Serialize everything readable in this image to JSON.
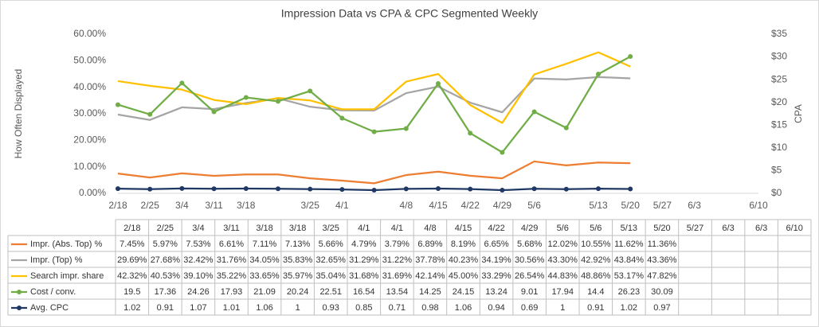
{
  "chart_data": {
    "type": "line",
    "title": "Impression Data vs CPA & CPC Segmented Weekly",
    "ylabel": "How Often Displayed",
    "y2label": "CPA",
    "categories": [
      "2/18",
      "2/25",
      "3/4",
      "3/11",
      "3/18",
      "3/18",
      "3/25",
      "4/1",
      "4/1",
      "4/8",
      "4/15",
      "4/22",
      "4/29",
      "5/6",
      "5/6",
      "5/13",
      "5/20",
      "5/27",
      "6/3",
      "6/3",
      "6/10"
    ],
    "ylim": [
      0,
      60
    ],
    "yticks": [
      {
        "value": 0,
        "label": "0.00%"
      },
      {
        "value": 10,
        "label": "10.00%"
      },
      {
        "value": 20,
        "label": "20.00%"
      },
      {
        "value": 30,
        "label": "30.00%"
      },
      {
        "value": 40,
        "label": "40.00%"
      },
      {
        "value": 50,
        "label": "50.00%"
      },
      {
        "value": 60,
        "label": "60.00%"
      }
    ],
    "y2lim": [
      0,
      35
    ],
    "y2ticks": [
      {
        "value": 0,
        "label": "$0"
      },
      {
        "value": 5,
        "label": "$5"
      },
      {
        "value": 10,
        "label": "$10"
      },
      {
        "value": 15,
        "label": "$15"
      },
      {
        "value": 20,
        "label": "$20"
      },
      {
        "value": 25,
        "label": "$25"
      },
      {
        "value": 30,
        "label": "$30"
      },
      {
        "value": 35,
        "label": "$35"
      }
    ],
    "grid": false,
    "series": [
      {
        "name": "Impr. (Abs. Top) %",
        "color": "#ed7d31",
        "marker": false,
        "values": [
          7.45,
          5.97,
          7.53,
          6.61,
          7.11,
          7.13,
          5.66,
          4.79,
          3.79,
          6.89,
          8.19,
          6.65,
          5.68,
          12.02,
          10.55,
          11.62,
          11.36,
          null,
          null,
          null,
          null
        ],
        "value_labels": [
          "7.45%",
          "5.97%",
          "7.53%",
          "6.61%",
          "7.11%",
          "7.13%",
          "5.66%",
          "4.79%",
          "3.79%",
          "6.89%",
          "8.19%",
          "6.65%",
          "5.68%",
          "12.02%",
          "10.55%",
          "11.62%",
          "11.36%",
          null,
          null,
          null,
          null
        ]
      },
      {
        "name": "Impr. (Top) %",
        "color": "#a5a5a5",
        "marker": false,
        "values": [
          29.69,
          27.68,
          32.42,
          31.76,
          34.05,
          35.83,
          32.65,
          31.29,
          31.22,
          37.78,
          40.23,
          34.19,
          30.56,
          43.3,
          42.92,
          43.84,
          43.36,
          null,
          null,
          null,
          null
        ],
        "value_labels": [
          "29.69%",
          "27.68%",
          "32.42%",
          "31.76%",
          "34.05%",
          "35.83%",
          "32.65%",
          "31.29%",
          "31.22%",
          "37.78%",
          "40.23%",
          "34.19%",
          "30.56%",
          "43.30%",
          "42.92%",
          "43.84%",
          "43.36%",
          null,
          null,
          null,
          null
        ]
      },
      {
        "name": "Search impr. share",
        "color": "#ffc000",
        "marker": false,
        "values": [
          42.32,
          40.53,
          39.1,
          35.22,
          33.65,
          35.97,
          35.04,
          31.68,
          31.69,
          42.14,
          45.0,
          33.29,
          26.54,
          44.83,
          48.86,
          53.17,
          47.82,
          null,
          null,
          null,
          null
        ],
        "value_labels": [
          "42.32%",
          "40.53%",
          "39.10%",
          "35.22%",
          "33.65%",
          "35.97%",
          "35.04%",
          "31.68%",
          "31.69%",
          "42.14%",
          "45.00%",
          "33.29%",
          "26.54%",
          "44.83%",
          "48.86%",
          "53.17%",
          "47.82%",
          null,
          null,
          null,
          null
        ]
      },
      {
        "name": "Cost / conv.",
        "color": "#70ad47",
        "marker": true,
        "axis": "y2",
        "values": [
          19.5,
          17.36,
          24.26,
          17.93,
          21.09,
          20.24,
          22.51,
          16.54,
          13.54,
          14.25,
          24.15,
          13.24,
          9.01,
          17.94,
          14.4,
          26.23,
          30.09,
          null,
          null,
          null,
          null
        ]
      },
      {
        "name": "Avg. CPC",
        "color": "#203864",
        "marker": true,
        "axis": "y2",
        "values": [
          1.02,
          0.91,
          1.07,
          1.01,
          1.06,
          1,
          0.93,
          0.85,
          0.71,
          0.98,
          1.06,
          0.94,
          0.69,
          1,
          0.91,
          1.02,
          0.97,
          null,
          null,
          null,
          null
        ]
      }
    ]
  }
}
